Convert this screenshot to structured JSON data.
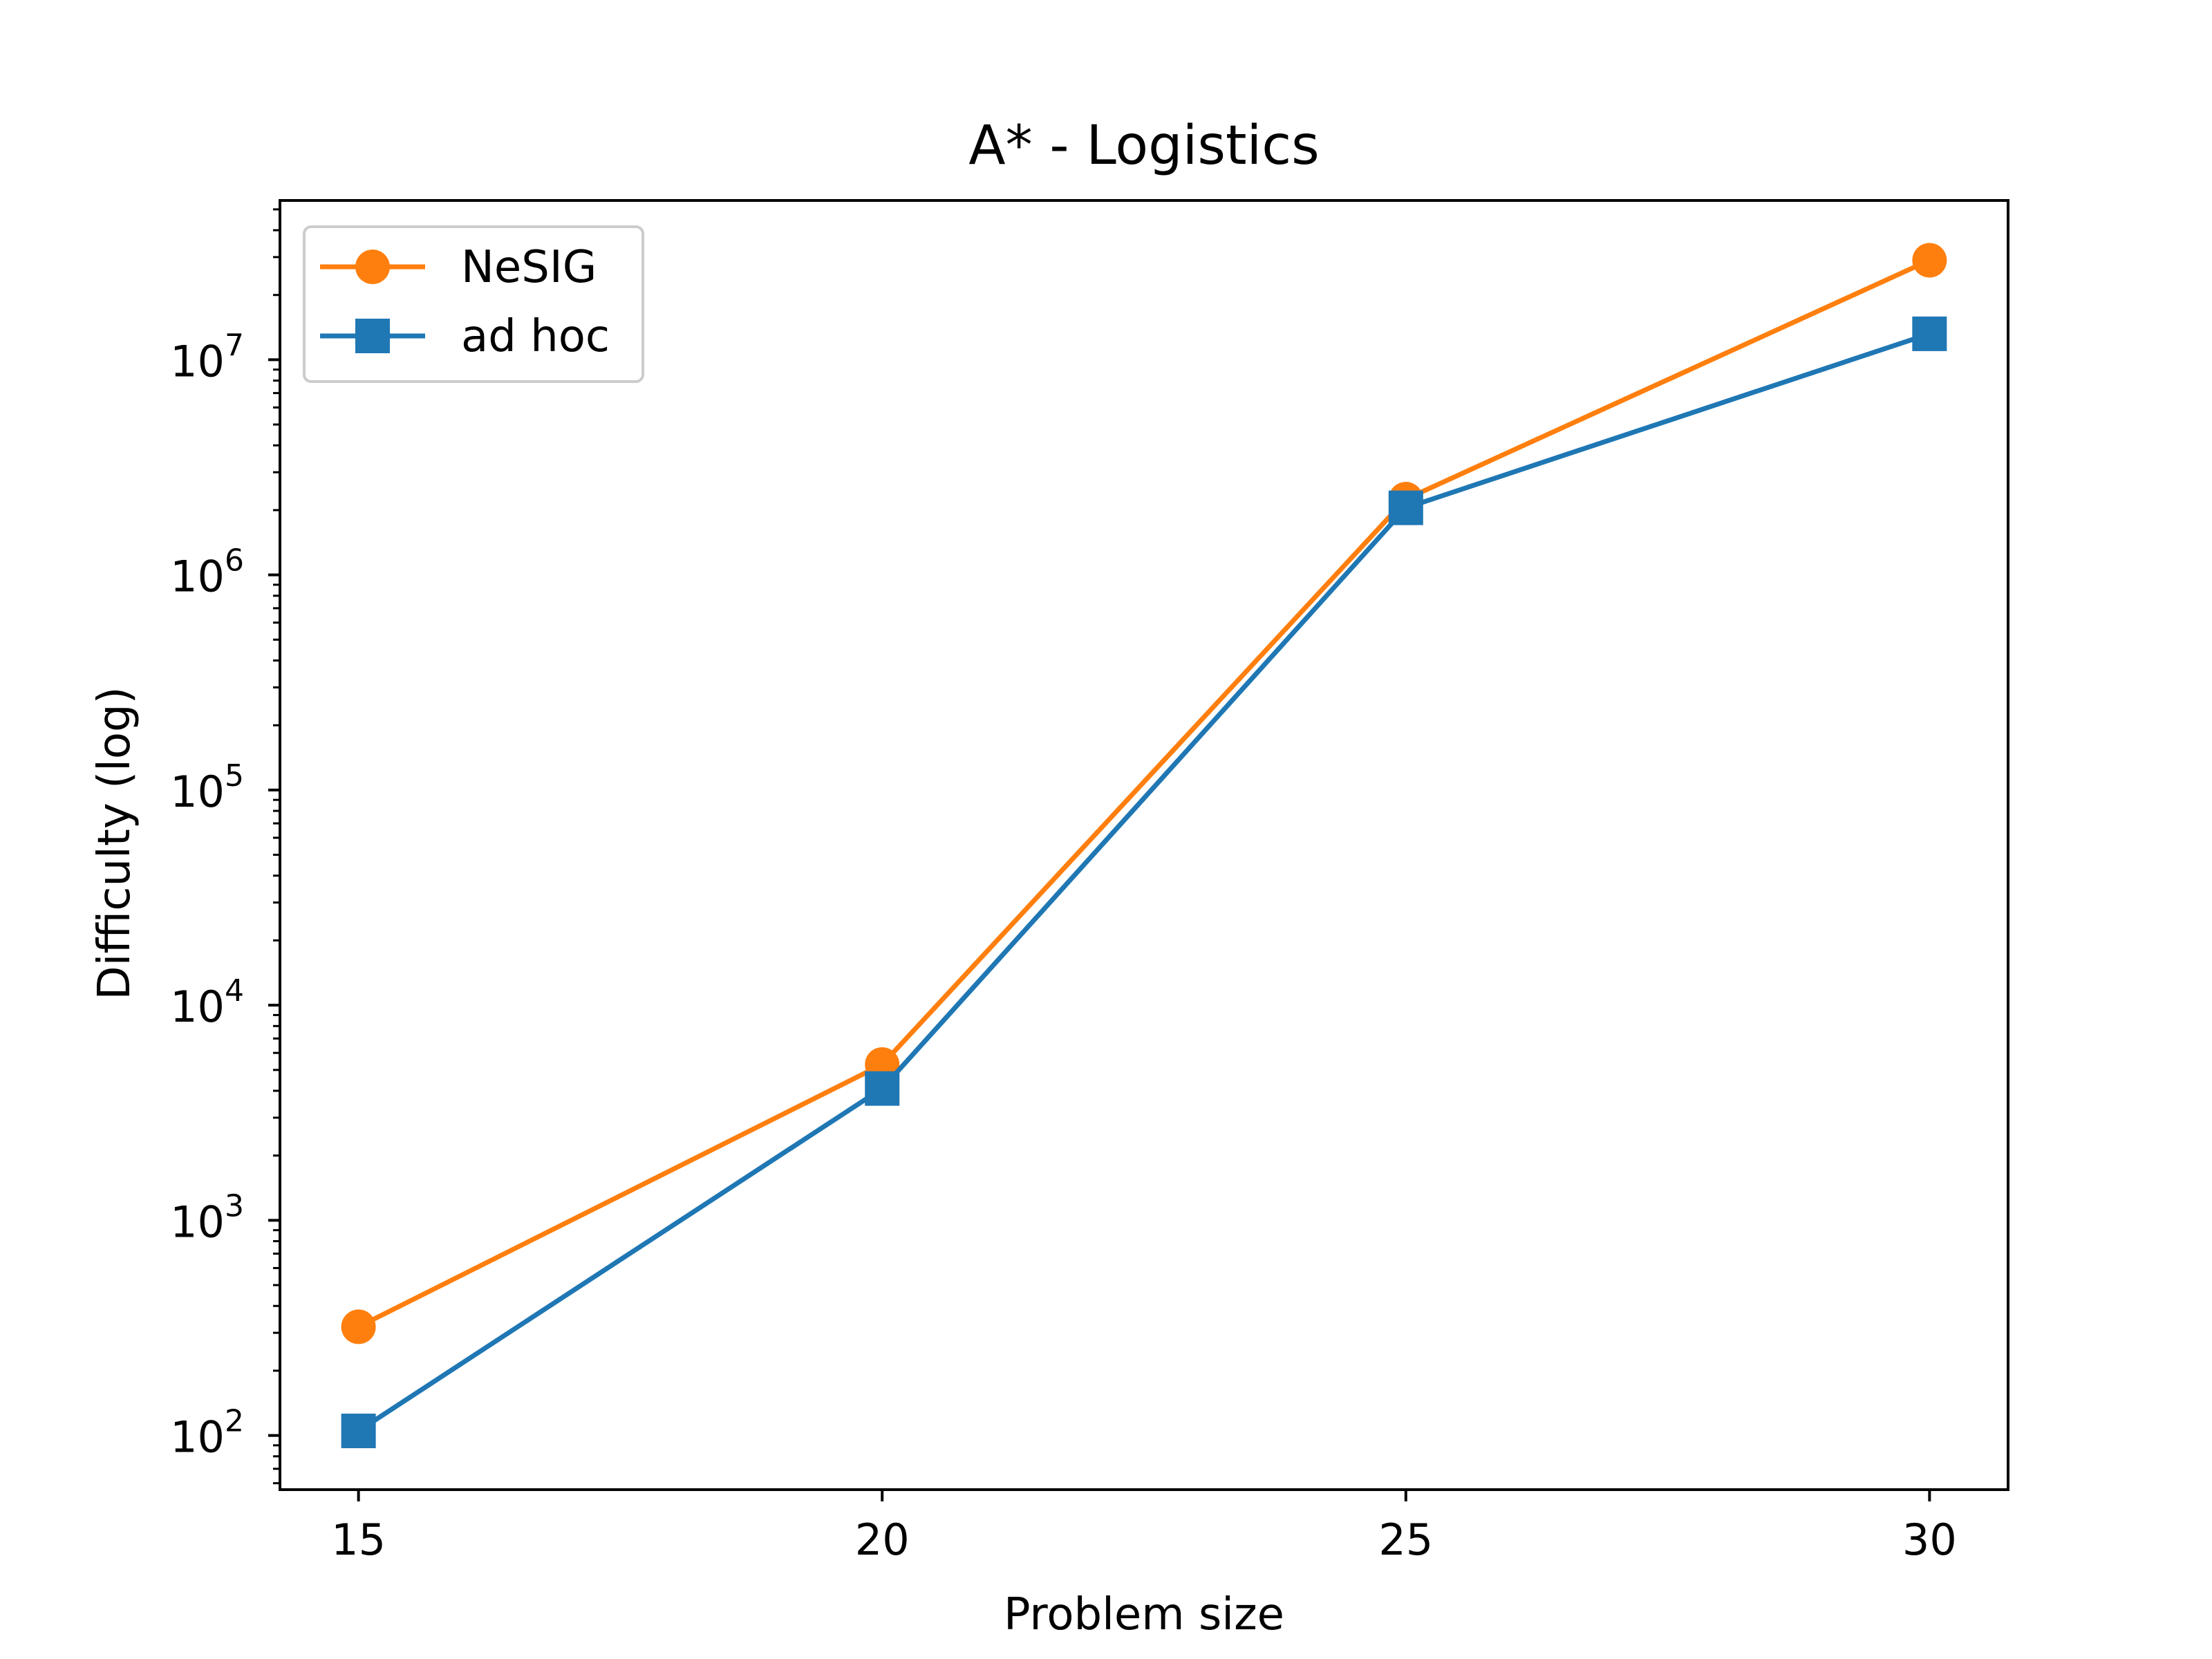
{
  "chart_data": {
    "type": "line",
    "title": "A* - Logistics",
    "xlabel": "Problem size",
    "ylabel": "Difficulty (log)",
    "x": [
      15,
      20,
      25,
      30
    ],
    "x_ticks": [
      15,
      20,
      25,
      30
    ],
    "xlim": [
      14.25,
      30.75
    ],
    "y_scale": "log",
    "ylim": [
      56,
      55000000
    ],
    "y_tick_labels": [
      {
        "base": "10",
        "exp": "2",
        "value": 100
      },
      {
        "base": "10",
        "exp": "3",
        "value": 1000
      },
      {
        "base": "10",
        "exp": "4",
        "value": 10000
      },
      {
        "base": "10",
        "exp": "5",
        "value": 100000
      },
      {
        "base": "10",
        "exp": "6",
        "value": 1000000
      },
      {
        "base": "10",
        "exp": "7",
        "value": 10000000
      }
    ],
    "grid": false,
    "legend_position": "upper left",
    "series": [
      {
        "name": "NeSIG",
        "values": [
          320,
          5300,
          2250000,
          29000000
        ],
        "color": "#ff7f0e",
        "marker": "circle"
      },
      {
        "name": "ad hoc",
        "values": [
          105,
          4100,
          2050000,
          13200000
        ],
        "color": "#1f77b4",
        "marker": "square"
      }
    ]
  }
}
